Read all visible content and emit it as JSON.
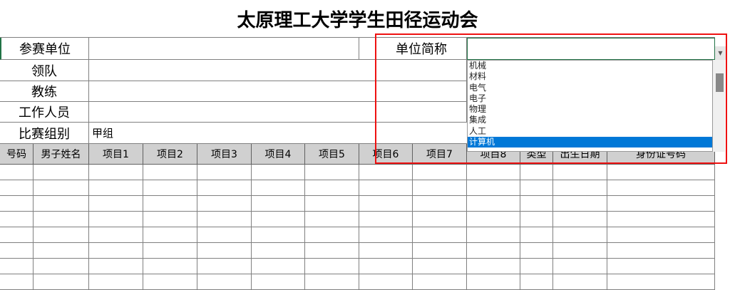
{
  "title": "太原理工大学学生田径运动会",
  "form": {
    "unit_label": "参赛单位",
    "unit_value": "",
    "short_label": "单位简称",
    "short_value": "",
    "leader_label": "领队",
    "coach_label": "教练",
    "staff_label": "工作人员",
    "group_label": "比赛组别",
    "group_value": "甲组"
  },
  "table": {
    "headers": [
      "号码",
      "男子姓名",
      "项目1",
      "项目2",
      "项目3",
      "项目4",
      "项目5",
      "项目6",
      "项目7",
      "项目8",
      "类型",
      "出生日期",
      "身份证号码"
    ]
  },
  "dropdown": {
    "options": [
      "机械",
      "材料",
      "电气",
      "电子",
      "物理",
      "集成",
      "人工",
      "计算机"
    ],
    "selected": "计算机",
    "highlight_color": "#0078d7"
  },
  "annotation": {
    "color": "#ee1111"
  }
}
